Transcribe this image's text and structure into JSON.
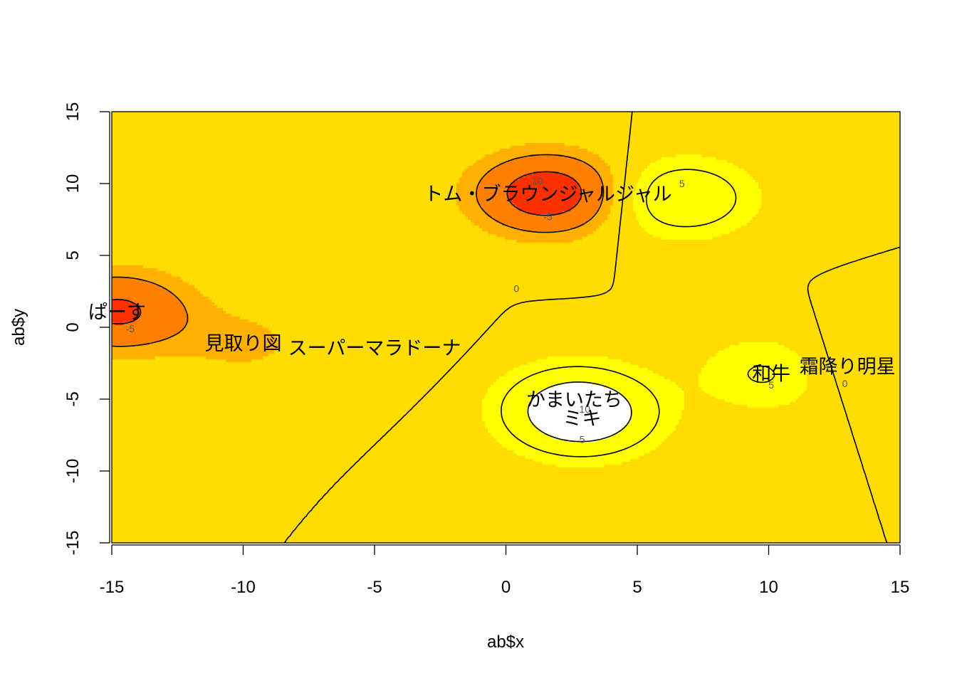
{
  "chart_data": {
    "type": "heatmap",
    "title": "",
    "xlabel": "ab$x",
    "ylabel": "ab$y",
    "xlim": [
      -15,
      15
    ],
    "ylim": [
      -15,
      15
    ],
    "xticks": [
      "-15",
      "-10",
      "-5",
      "0",
      "5",
      "10",
      "15"
    ],
    "yticks": [
      "-15",
      "-10",
      "-5",
      "0",
      "5",
      "10",
      "15"
    ],
    "background_value": 0,
    "grid": false,
    "colors": {
      "levels": [
        "#ffffff",
        "#ffff00",
        "#ffdd00",
        "#ffb000",
        "#ff8000",
        "#ff3000"
      ],
      "thresholds": [
        10,
        2.5,
        -2.5,
        -5,
        -10
      ],
      "contour": "#000000"
    },
    "contour_levels": [
      -10,
      -5,
      0,
      5,
      10
    ],
    "contour_labels": [
      {
        "text": "0",
        "x": 0.4,
        "y": 2.7
      },
      {
        "text": "-5",
        "x": 1.6,
        "y": 7.7
      },
      {
        "text": "10",
        "x": 1.2,
        "y": 10.2
      },
      {
        "text": "-5",
        "x": -14.3,
        "y": -0.1
      },
      {
        "text": "5",
        "x": 6.7,
        "y": 10.0
      },
      {
        "text": "10",
        "x": 3.0,
        "y": -5.7
      },
      {
        "text": "5",
        "x": 2.9,
        "y": -7.8
      },
      {
        "text": "5",
        "x": 10.1,
        "y": -4.0
      },
      {
        "text": "0",
        "x": 12.9,
        "y": -3.9
      }
    ],
    "points": [
      {
        "label": "トム・ブラウンジャルジャル",
        "x": 1.6,
        "y": 9.3,
        "z": -14
      },
      {
        "label": "ぱーす",
        "x": -14.8,
        "y": 1.1,
        "z": -11
      },
      {
        "label": "見取り図",
        "x": -10.0,
        "y": -1.1,
        "z": -3
      },
      {
        "label": "スーパーマラドーナ",
        "x": -5.0,
        "y": -1.4,
        "z": -1
      },
      {
        "label": "かまいたち",
        "x": 2.6,
        "y": -5.0,
        "z": 6
      },
      {
        "label": "ミキ",
        "x": 2.9,
        "y": -6.3,
        "z": 12
      },
      {
        "label": "和牛",
        "x": 10.1,
        "y": -3.2,
        "z": 6
      },
      {
        "label": "霜降り明星",
        "x": 13.0,
        "y": -2.7,
        "z": -3
      },
      {
        "label": "",
        "x": 6.7,
        "y": 9.0,
        "z": 9
      }
    ]
  }
}
